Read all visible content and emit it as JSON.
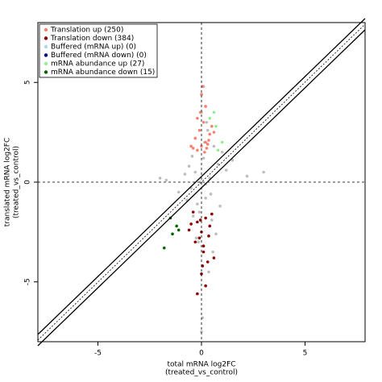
{
  "chart_data": {
    "type": "scatter",
    "xlabel": [
      "total mRNA log2FC",
      "(treated_vs_control)"
    ],
    "ylabel": [
      "translated mRNA log2FC",
      "(treated_vs_control)"
    ],
    "xlim": [
      -7.9,
      7.9
    ],
    "ylim": [
      -8,
      8
    ],
    "xticks": [
      -5,
      0,
      5
    ],
    "yticks": [
      -5,
      0,
      5
    ],
    "legend": "top-left",
    "series": [
      {
        "color": "#bebebe",
        "x": [
          -0.3,
          0.1,
          0.2,
          -0.1,
          0.4,
          -0.5,
          0.6,
          0,
          0.3,
          -0.2,
          0.8,
          -0.8,
          1.2,
          -1.1,
          0.5,
          -0.4,
          0.1,
          0.2,
          -0.6,
          1.5,
          2.2,
          -1.7,
          0.9,
          -0.3,
          0.05,
          0.35,
          -0.15,
          0.7,
          -0.7,
          1.0,
          3.0,
          -2.0,
          0.25,
          -0.05,
          0.45,
          0.15,
          -0.25,
          0.55,
          -0.45,
          0.0
        ],
        "y": [
          0.5,
          1.2,
          -0.8,
          -1.5,
          0.2,
          -0.3,
          1.8,
          3.5,
          2.6,
          -1.1,
          0.9,
          0.4,
          0.6,
          -0.5,
          -1.9,
          -1.7,
          4.8,
          -0.1,
          0.8,
          1.1,
          0.3,
          0.1,
          -1.2,
          2.2,
          -6.8,
          -4.5,
          -3.0,
          -2.6,
          -0.9,
          1.5,
          0.5,
          0.2,
          3.0,
          0.0,
          -0.6,
          2.0,
          -2.8,
          -3.5,
          1.3,
          -7.5
        ]
      },
      {
        "name": "Translation up (250)",
        "color": "#fa8072",
        "x": [
          -0.2,
          0,
          0.2,
          0.4,
          -0.4,
          0.1,
          -0.1,
          0.3,
          -0.3,
          0.5,
          0,
          0.2,
          -0.2,
          0.15,
          0.35,
          -0.5,
          0.6,
          0.05,
          -0.05,
          0.25
        ],
        "y": [
          1.6,
          1.8,
          2.0,
          2.4,
          1.7,
          3.0,
          2.6,
          1.9,
          2.2,
          2.8,
          4.4,
          3.8,
          3.2,
          1.5,
          2.1,
          1.8,
          2.5,
          4.8,
          3.5,
          1.7
        ]
      },
      {
        "name": "Translation down (384)",
        "color": "#8b0000",
        "x": [
          -0.4,
          -0.2,
          0,
          0.2,
          0.4,
          -0.3,
          0.1,
          0.3,
          -0.1,
          0.5,
          -0.5,
          0,
          0.2,
          -0.2,
          0.1,
          -0.6,
          0.6,
          0.05,
          -0.05,
          0.35
        ],
        "y": [
          -1.5,
          -2.0,
          -2.5,
          -1.8,
          -2.2,
          -3.0,
          -3.5,
          -4.0,
          -2.8,
          -1.6,
          -2.1,
          -4.6,
          -5.2,
          -5.6,
          -3.2,
          -2.4,
          -3.8,
          -4.2,
          -1.9,
          -2.7
        ]
      },
      {
        "name": "Buffered (mRNA up) (0)",
        "color": "#add8e6",
        "x": [],
        "y": []
      },
      {
        "name": "Buffered (mRNA down) (0)",
        "color": "#00008b",
        "x": [],
        "y": []
      },
      {
        "name": "mRNA abundance up (27)",
        "color": "#90ee90",
        "x": [
          0.4,
          0.7,
          1.0,
          0.6,
          0.8
        ],
        "y": [
          3.2,
          2.8,
          2.0,
          3.5,
          1.6
        ]
      },
      {
        "name": "mRNA abundance down (15)",
        "color": "#006400",
        "x": [
          -1.5,
          -1.2,
          -1.4,
          -1.8,
          -1.1
        ],
        "y": [
          -1.8,
          -2.2,
          -2.6,
          -3.3,
          -2.4
        ]
      }
    ]
  }
}
